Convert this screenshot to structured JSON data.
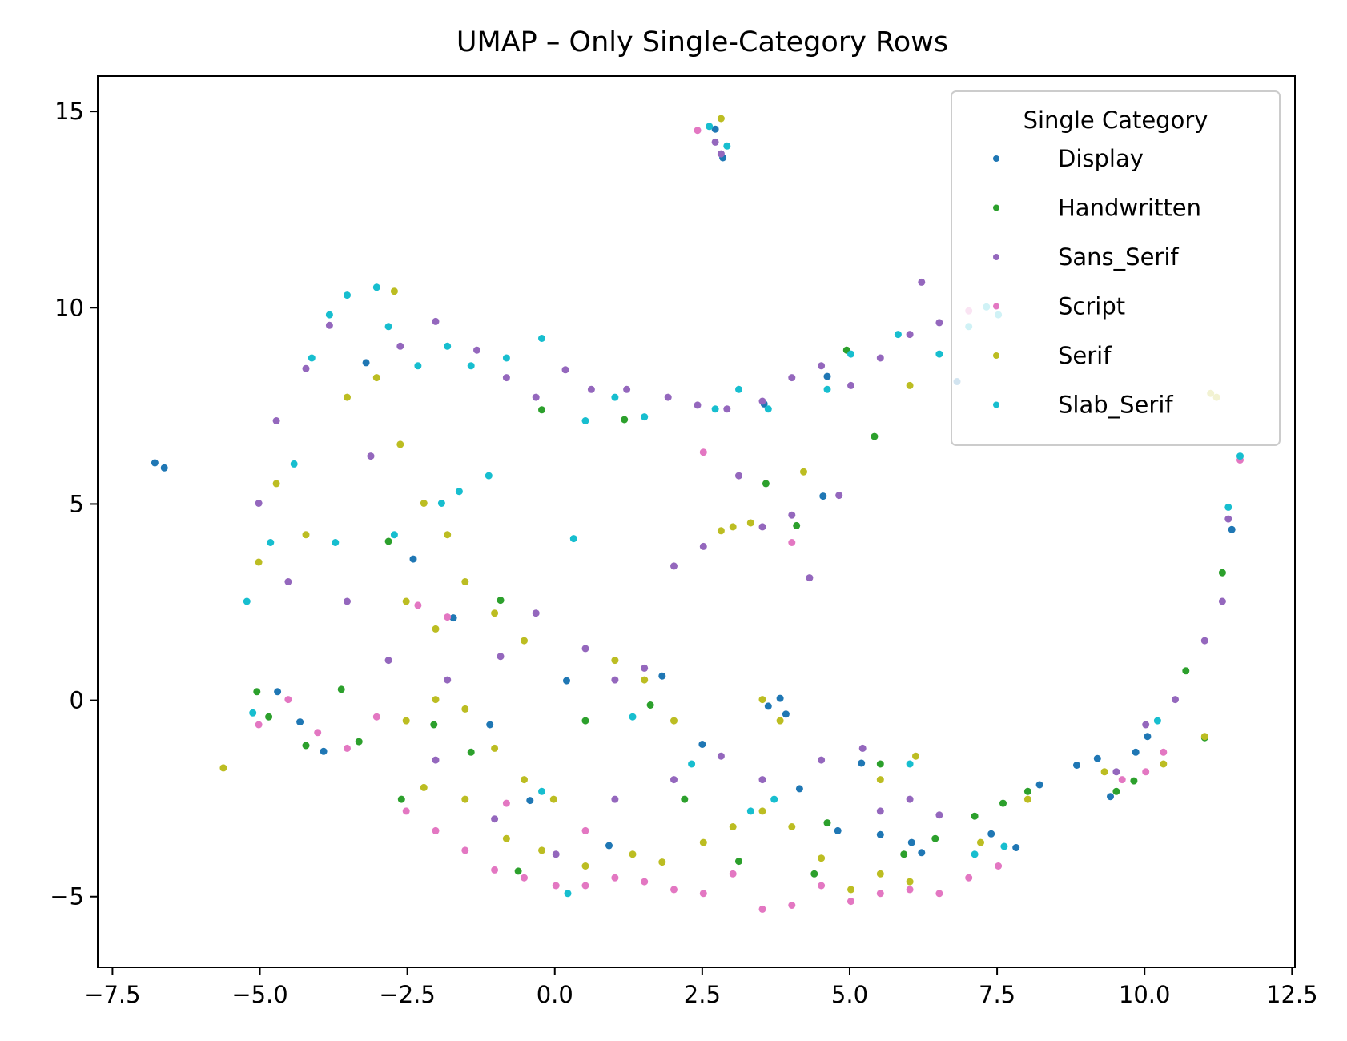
{
  "chart_data": {
    "type": "scatter",
    "title": "UMAP – Only Single-Category Rows",
    "xlabel": "",
    "ylabel": "",
    "xlim": [
      -7.75,
      12.55
    ],
    "ylim": [
      -6.8,
      15.9
    ],
    "xticks": [
      -7.5,
      -5.0,
      -2.5,
      0.0,
      2.5,
      5.0,
      7.5,
      10.0,
      12.5
    ],
    "xtick_labels": [
      "−7.5",
      "−5.0",
      "−2.5",
      "0.0",
      "2.5",
      "5.0",
      "7.5",
      "10.0",
      "12.5"
    ],
    "yticks": [
      -5,
      0,
      5,
      10,
      15
    ],
    "ytick_labels": [
      "−5",
      "0",
      "5",
      "10",
      "15"
    ],
    "grid": false,
    "legend": {
      "title": "Single Category",
      "placement": "top-right"
    },
    "series": [
      {
        "name": "Display",
        "color": "#1f77b4",
        "points": [
          [
            -6.78,
            6.05
          ],
          [
            -6.62,
            5.92
          ],
          [
            -4.7,
            0.22
          ],
          [
            -4.32,
            -0.55
          ],
          [
            -3.92,
            -1.3
          ],
          [
            -3.2,
            8.6
          ],
          [
            -2.4,
            3.6
          ],
          [
            -1.72,
            2.1
          ],
          [
            -1.1,
            -0.62
          ],
          [
            -0.42,
            -2.55
          ],
          [
            0.2,
            0.5
          ],
          [
            0.92,
            -3.7
          ],
          [
            1.82,
            0.62
          ],
          [
            2.5,
            -1.12
          ],
          [
            2.72,
            14.55
          ],
          [
            2.85,
            13.82
          ],
          [
            3.55,
            7.55
          ],
          [
            3.62,
            -0.15
          ],
          [
            3.82,
            0.05
          ],
          [
            3.92,
            -0.35
          ],
          [
            4.15,
            -2.25
          ],
          [
            4.55,
            5.2
          ],
          [
            4.62,
            8.25
          ],
          [
            4.8,
            -3.32
          ],
          [
            5.2,
            -1.6
          ],
          [
            5.52,
            -3.42
          ],
          [
            6.05,
            -3.62
          ],
          [
            6.22,
            -3.88
          ],
          [
            6.82,
            8.12
          ],
          [
            7.4,
            -3.4
          ],
          [
            7.82,
            -3.75
          ],
          [
            8.22,
            -2.15
          ],
          [
            8.85,
            -1.65
          ],
          [
            9.2,
            -1.48
          ],
          [
            9.42,
            -2.45
          ],
          [
            9.85,
            -1.32
          ],
          [
            10.05,
            -0.92
          ],
          [
            11.48,
            4.35
          ]
        ]
      },
      {
        "name": "Handwritten",
        "color": "#2ca02c",
        "points": [
          [
            -5.05,
            0.22
          ],
          [
            -4.85,
            -0.42
          ],
          [
            -4.22,
            -1.15
          ],
          [
            -3.62,
            0.28
          ],
          [
            -3.32,
            -1.05
          ],
          [
            -2.82,
            4.05
          ],
          [
            -2.6,
            -2.52
          ],
          [
            -2.05,
            -0.62
          ],
          [
            -1.42,
            -1.32
          ],
          [
            -0.92,
            2.55
          ],
          [
            -0.62,
            -4.35
          ],
          [
            -0.22,
            7.4
          ],
          [
            0.52,
            -0.52
          ],
          [
            1.18,
            7.15
          ],
          [
            1.62,
            -0.12
          ],
          [
            2.2,
            -2.52
          ],
          [
            3.12,
            -4.1
          ],
          [
            3.58,
            5.52
          ],
          [
            4.1,
            4.45
          ],
          [
            4.4,
            -4.42
          ],
          [
            4.62,
            -3.12
          ],
          [
            4.95,
            8.92
          ],
          [
            5.42,
            6.72
          ],
          [
            5.52,
            -1.62
          ],
          [
            5.92,
            -3.92
          ],
          [
            6.45,
            -3.52
          ],
          [
            7.12,
            -2.95
          ],
          [
            7.6,
            -2.62
          ],
          [
            8.02,
            -2.32
          ],
          [
            9.52,
            -2.32
          ],
          [
            9.82,
            -2.05
          ],
          [
            10.7,
            0.75
          ],
          [
            11.02,
            -0.95
          ],
          [
            11.32,
            3.25
          ]
        ]
      },
      {
        "name": "Sans_Serif",
        "color": "#9467bd",
        "points": [
          [
            -5.02,
            5.02
          ],
          [
            -4.72,
            7.12
          ],
          [
            -4.22,
            8.45
          ],
          [
            -3.82,
            9.55
          ],
          [
            -3.12,
            6.22
          ],
          [
            -2.62,
            9.02
          ],
          [
            -2.02,
            9.65
          ],
          [
            -1.32,
            8.92
          ],
          [
            -0.82,
            8.22
          ],
          [
            -0.32,
            7.72
          ],
          [
            0.18,
            8.42
          ],
          [
            0.62,
            7.92
          ],
          [
            1.22,
            7.92
          ],
          [
            1.92,
            7.72
          ],
          [
            2.42,
            7.52
          ],
          [
            2.92,
            7.42
          ],
          [
            3.52,
            7.62
          ],
          [
            4.02,
            8.22
          ],
          [
            4.52,
            8.52
          ],
          [
            5.02,
            8.02
          ],
          [
            5.52,
            8.72
          ],
          [
            6.02,
            9.32
          ],
          [
            6.52,
            9.62
          ],
          [
            6.22,
            10.65
          ],
          [
            3.12,
            5.72
          ],
          [
            3.52,
            4.42
          ],
          [
            4.02,
            4.72
          ],
          [
            4.82,
            5.22
          ],
          [
            2.02,
            3.42
          ],
          [
            2.52,
            3.92
          ],
          [
            4.32,
            3.12
          ],
          [
            -4.52,
            3.02
          ],
          [
            -3.52,
            2.52
          ],
          [
            -2.82,
            1.02
          ],
          [
            -1.82,
            0.52
          ],
          [
            -0.92,
            1.12
          ],
          [
            -0.32,
            2.22
          ],
          [
            0.52,
            1.32
          ],
          [
            1.02,
            0.52
          ],
          [
            1.52,
            0.82
          ],
          [
            -2.02,
            -1.52
          ],
          [
            -1.02,
            -3.02
          ],
          [
            0.02,
            -3.92
          ],
          [
            1.02,
            -2.52
          ],
          [
            2.02,
            -2.02
          ],
          [
            2.82,
            -1.42
          ],
          [
            3.52,
            -2.02
          ],
          [
            4.52,
            -1.52
          ],
          [
            5.22,
            -1.22
          ],
          [
            6.02,
            -2.52
          ],
          [
            6.52,
            -2.92
          ],
          [
            5.52,
            -2.82
          ],
          [
            9.52,
            -1.82
          ],
          [
            10.02,
            -0.62
          ],
          [
            10.52,
            0.02
          ],
          [
            11.02,
            1.52
          ],
          [
            11.32,
            2.52
          ],
          [
            11.42,
            4.62
          ],
          [
            2.72,
            14.22
          ],
          [
            2.82,
            13.92
          ]
        ]
      },
      {
        "name": "Script",
        "color": "#e377c2",
        "points": [
          [
            -5.02,
            -0.62
          ],
          [
            -4.52,
            0.02
          ],
          [
            -4.02,
            -0.82
          ],
          [
            -3.52,
            -1.22
          ],
          [
            -3.02,
            -0.42
          ],
          [
            -2.52,
            -2.82
          ],
          [
            -2.02,
            -3.32
          ],
          [
            -1.52,
            -3.82
          ],
          [
            -1.02,
            -4.32
          ],
          [
            -0.52,
            -4.52
          ],
          [
            0.02,
            -4.72
          ],
          [
            0.52,
            -4.72
          ],
          [
            1.02,
            -4.52
          ],
          [
            1.52,
            -4.62
          ],
          [
            2.02,
            -4.82
          ],
          [
            2.52,
            -4.92
          ],
          [
            3.02,
            -4.42
          ],
          [
            3.52,
            -5.32
          ],
          [
            4.02,
            -5.22
          ],
          [
            4.52,
            -4.72
          ],
          [
            5.02,
            -5.12
          ],
          [
            5.52,
            -4.92
          ],
          [
            6.02,
            -4.82
          ],
          [
            6.52,
            -4.92
          ],
          [
            7.02,
            -4.52
          ],
          [
            7.52,
            -4.22
          ],
          [
            -2.32,
            2.42
          ],
          [
            -1.82,
            2.12
          ],
          [
            -0.82,
            -2.62
          ],
          [
            0.52,
            -3.32
          ],
          [
            4.02,
            4.02
          ],
          [
            2.52,
            6.32
          ],
          [
            2.42,
            14.52
          ],
          [
            9.62,
            -2.02
          ],
          [
            10.02,
            -1.82
          ],
          [
            10.32,
            -1.32
          ],
          [
            7.02,
            9.92
          ],
          [
            11.62,
            6.12
          ]
        ]
      },
      {
        "name": "Serif",
        "color": "#bcbd22",
        "points": [
          [
            -5.62,
            -1.72
          ],
          [
            -5.02,
            3.52
          ],
          [
            -4.72,
            5.52
          ],
          [
            -4.22,
            4.22
          ],
          [
            -3.52,
            7.72
          ],
          [
            -3.02,
            8.22
          ],
          [
            -2.62,
            6.52
          ],
          [
            -2.22,
            5.02
          ],
          [
            -1.82,
            4.22
          ],
          [
            -2.52,
            2.52
          ],
          [
            -2.02,
            1.82
          ],
          [
            -1.52,
            3.02
          ],
          [
            -1.02,
            2.22
          ],
          [
            -0.52,
            1.52
          ],
          [
            -2.52,
            -0.52
          ],
          [
            -2.02,
            0.02
          ],
          [
            -1.52,
            -0.22
          ],
          [
            -1.02,
            -1.22
          ],
          [
            -0.52,
            -2.02
          ],
          [
            -0.02,
            -2.52
          ],
          [
            -2.22,
            -2.22
          ],
          [
            -1.52,
            -2.52
          ],
          [
            -0.82,
            -3.52
          ],
          [
            -0.22,
            -3.82
          ],
          [
            0.52,
            -4.22
          ],
          [
            1.32,
            -3.92
          ],
          [
            1.82,
            -4.12
          ],
          [
            2.52,
            -3.62
          ],
          [
            3.02,
            -3.22
          ],
          [
            3.52,
            -2.82
          ],
          [
            4.02,
            -3.22
          ],
          [
            4.52,
            -4.02
          ],
          [
            5.02,
            -4.82
          ],
          [
            5.52,
            -4.42
          ],
          [
            6.02,
            -4.62
          ],
          [
            1.02,
            1.02
          ],
          [
            1.52,
            0.52
          ],
          [
            2.02,
            -0.52
          ],
          [
            3.52,
            0.02
          ],
          [
            3.82,
            -0.52
          ],
          [
            4.22,
            5.82
          ],
          [
            2.82,
            4.32
          ],
          [
            3.32,
            4.52
          ],
          [
            5.52,
            -2.02
          ],
          [
            6.12,
            -1.42
          ],
          [
            7.22,
            -3.62
          ],
          [
            8.02,
            -2.52
          ],
          [
            9.32,
            -1.82
          ],
          [
            10.32,
            -1.62
          ],
          [
            11.02,
            -0.92
          ],
          [
            11.12,
            7.82
          ],
          [
            11.22,
            7.72
          ],
          [
            6.02,
            8.02
          ],
          [
            2.82,
            14.82
          ],
          [
            3.02,
            4.42
          ],
          [
            -2.72,
            10.42
          ]
        ]
      },
      {
        "name": "Slab_Serif",
        "color": "#17becf",
        "points": [
          [
            -5.22,
            2.52
          ],
          [
            -5.12,
            -0.32
          ],
          [
            -4.82,
            4.02
          ],
          [
            -4.42,
            6.02
          ],
          [
            -4.12,
            8.72
          ],
          [
            -3.82,
            9.82
          ],
          [
            -3.52,
            10.32
          ],
          [
            -3.02,
            10.52
          ],
          [
            -2.82,
            9.52
          ],
          [
            -2.32,
            8.52
          ],
          [
            -1.82,
            9.02
          ],
          [
            -1.42,
            8.52
          ],
          [
            -0.82,
            8.72
          ],
          [
            -0.22,
            9.22
          ],
          [
            0.52,
            7.12
          ],
          [
            1.02,
            7.72
          ],
          [
            1.52,
            7.22
          ],
          [
            2.72,
            7.42
          ],
          [
            3.12,
            7.92
          ],
          [
            3.62,
            7.42
          ],
          [
            4.62,
            7.92
          ],
          [
            5.02,
            8.82
          ],
          [
            5.82,
            9.32
          ],
          [
            6.52,
            8.82
          ],
          [
            7.02,
            9.52
          ],
          [
            7.32,
            10.02
          ],
          [
            7.52,
            9.82
          ],
          [
            -1.92,
            5.02
          ],
          [
            -1.62,
            5.32
          ],
          [
            -1.12,
            5.72
          ],
          [
            -2.72,
            4.22
          ],
          [
            -3.72,
            4.02
          ],
          [
            0.32,
            4.12
          ],
          [
            -0.22,
            -2.32
          ],
          [
            1.32,
            -0.42
          ],
          [
            2.32,
            -1.62
          ],
          [
            3.32,
            -2.82
          ],
          [
            3.72,
            -2.52
          ],
          [
            6.02,
            -1.62
          ],
          [
            7.12,
            -3.92
          ],
          [
            7.62,
            -3.72
          ],
          [
            10.22,
            -0.52
          ],
          [
            11.42,
            4.92
          ],
          [
            11.62,
            6.22
          ],
          [
            2.62,
            14.62
          ],
          [
            2.92,
            14.12
          ],
          [
            0.22,
            -4.92
          ]
        ]
      }
    ]
  }
}
